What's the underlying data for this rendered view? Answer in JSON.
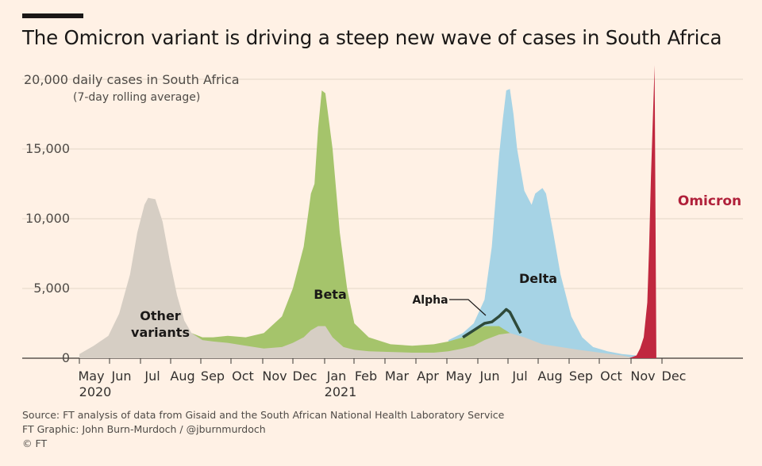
{
  "title": "The Omicron variant is driving a steep new wave of cases in South Africa",
  "chart_data": {
    "type": "area",
    "ylabel": "20,000 daily cases in South Africa",
    "ylabel_sub": "(7-day rolling average)",
    "ylim": [
      0,
      20000
    ],
    "yticks": [
      0,
      5000,
      10000,
      15000,
      20000
    ],
    "ytick_labels": [
      "0",
      "5,000",
      "10,000",
      "15,000"
    ],
    "x_range": [
      2020.34,
      2021.99
    ],
    "xticks": [
      {
        "label": "May",
        "year": "2020"
      },
      {
        "label": "Jun",
        "year": ""
      },
      {
        "label": "Jul",
        "year": ""
      },
      {
        "label": "Aug",
        "year": ""
      },
      {
        "label": "Sep",
        "year": ""
      },
      {
        "label": "Oct",
        "year": ""
      },
      {
        "label": "Nov",
        "year": ""
      },
      {
        "label": "Dec",
        "year": ""
      },
      {
        "label": "Jan",
        "year": "2021"
      },
      {
        "label": "Feb",
        "year": ""
      },
      {
        "label": "Mar",
        "year": ""
      },
      {
        "label": "Apr",
        "year": ""
      },
      {
        "label": "May",
        "year": ""
      },
      {
        "label": "Jun",
        "year": ""
      },
      {
        "label": "Jul",
        "year": ""
      },
      {
        "label": "Aug",
        "year": ""
      },
      {
        "label": "Sep",
        "year": ""
      },
      {
        "label": "Oct",
        "year": ""
      },
      {
        "label": "Nov",
        "year": ""
      },
      {
        "label": "Dec",
        "year": ""
      }
    ],
    "grid": true,
    "series": [
      {
        "name": "Other variants",
        "label_lines": [
          "Other",
          "variants"
        ],
        "color": "#d6cec4",
        "x": [
          2020.34,
          2020.38,
          2020.42,
          2020.45,
          2020.48,
          2020.5,
          2020.52,
          2020.53,
          2020.55,
          2020.57,
          2020.59,
          2020.61,
          2020.63,
          2020.65,
          2020.68,
          2020.71,
          2020.75,
          2020.8,
          2020.85,
          2020.9,
          2020.93,
          2020.96,
          2020.98,
          2021.0,
          2021.02,
          2021.04,
          2021.07,
          2021.1,
          2021.14,
          2021.2,
          2021.26,
          2021.32,
          2021.36,
          2021.4,
          2021.43,
          2021.46,
          2021.5,
          2021.53,
          2021.57,
          2021.62,
          2021.67,
          2021.72,
          2021.78,
          2021.84,
          2021.88
        ],
        "values": [
          300,
          900,
          1600,
          3200,
          6000,
          9000,
          11000,
          11500,
          11400,
          9800,
          7000,
          4500,
          2700,
          1800,
          1300,
          1200,
          1100,
          900,
          700,
          800,
          1100,
          1500,
          2000,
          2300,
          2300,
          1500,
          800,
          600,
          500,
          450,
          400,
          400,
          500,
          700,
          900,
          1300,
          1700,
          1800,
          1500,
          1000,
          800,
          600,
          400,
          200,
          0
        ]
      },
      {
        "name": "Beta",
        "label_lines": [
          "Beta"
        ],
        "color": "#a5c46b",
        "x": [
          2020.65,
          2020.68,
          2020.71,
          2020.75,
          2020.8,
          2020.85,
          2020.9,
          2020.93,
          2020.96,
          2020.98,
          2020.99,
          2021.0,
          2021.01,
          2021.02,
          2021.04,
          2021.06,
          2021.08,
          2021.1,
          2021.14,
          2021.2,
          2021.26,
          2021.32,
          2021.36,
          2021.4,
          2021.43,
          2021.46,
          2021.5,
          2021.53,
          2021.55
        ],
        "top": [
          1800,
          1500,
          1500,
          1600,
          1500,
          1800,
          3000,
          5000,
          8000,
          11800,
          12500,
          16500,
          19200,
          19000,
          15000,
          9000,
          5000,
          2500,
          1500,
          1000,
          900,
          1000,
          1200,
          1500,
          2000,
          2300,
          2300,
          1800,
          1400
        ]
      },
      {
        "name": "Alpha",
        "label_lines": [
          "Alpha"
        ],
        "color": "#2f4a3a",
        "x": [
          2021.4,
          2021.43,
          2021.46,
          2021.48,
          2021.5,
          2021.52,
          2021.53,
          2021.54,
          2021.56
        ],
        "top": [
          1500,
          2000,
          2500,
          2600,
          3000,
          3500,
          3300,
          2800,
          1800
        ]
      },
      {
        "name": "Delta",
        "label_lines": [
          "Delta"
        ],
        "color": "#a6d3e5",
        "x": [
          2021.36,
          2021.4,
          2021.43,
          2021.46,
          2021.48,
          2021.5,
          2021.51,
          2021.52,
          2021.53,
          2021.54,
          2021.55,
          2021.57,
          2021.59,
          2021.6,
          2021.62,
          2021.63,
          2021.65,
          2021.67,
          2021.7,
          2021.73,
          2021.76,
          2021.8,
          2021.84,
          2021.88
        ],
        "top": [
          1300,
          1800,
          2500,
          4200,
          8000,
          14500,
          17000,
          19200,
          19300,
          17500,
          15000,
          12000,
          11000,
          11800,
          12200,
          11800,
          9000,
          6000,
          3000,
          1500,
          800,
          500,
          300,
          200
        ]
      },
      {
        "name": "Omicron",
        "label_lines": [
          "Omicron"
        ],
        "color": "#c0283f",
        "x": [
          2021.86,
          2021.88,
          2021.89,
          2021.9,
          2021.91,
          2021.915,
          2021.92,
          2021.925,
          2021.93,
          2021.935
        ],
        "values": [
          0,
          200,
          700,
          1500,
          4000,
          8000,
          13000,
          17000,
          21000,
          0
        ]
      }
    ],
    "annotations": [
      "Alpha"
    ]
  },
  "footer": {
    "source": "Source: FT analysis of data from Gisaid and the South African National Health Laboratory Service",
    "credit": "FT Graphic: John Burn-Murdoch / @jburnmurdoch",
    "copyright": "© FT"
  }
}
